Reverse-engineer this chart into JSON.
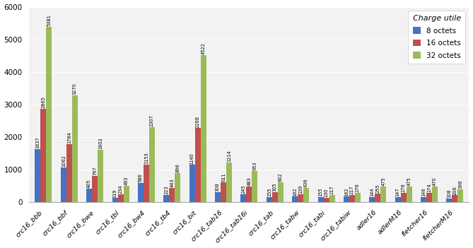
{
  "categories": [
    "crc16_bbb",
    "crc16_bbf",
    "crc16_bwe",
    "crc16_tbl",
    "crc16_bw4",
    "crc16_tb4",
    "crc16_bit",
    "crc16_tab16",
    "crc16_tab16i",
    "crc16_tab",
    "crc16_tabw",
    "crc16_tabi",
    "crc16_tabiw",
    "adler16",
    "adlerM16",
    "fletcher16",
    "fletcherM16"
  ],
  "series_8": [
    1637,
    1062,
    405,
    119,
    586,
    223,
    1140,
    308,
    245,
    155,
    162,
    155,
    162,
    144,
    147,
    146,
    108
  ],
  "series_16": [
    2865,
    1784,
    797,
    234,
    1153,
    443,
    2268,
    611,
    483,
    305,
    239,
    130,
    217,
    255,
    276,
    274,
    206
  ],
  "series_32": [
    5381,
    3270,
    1602,
    493,
    2307,
    896,
    4522,
    1214,
    953,
    602,
    436,
    217,
    276,
    475,
    475,
    470,
    396
  ],
  "color_8": "#4472C4",
  "color_16": "#C0504D",
  "color_32": "#9BBB59",
  "legend_title": "Charge utile",
  "legend_labels": [
    "8 octets",
    "16 octets",
    "32 octets"
  ],
  "ylim": [
    0,
    6000
  ],
  "yticks": [
    0,
    1000,
    2000,
    3000,
    4000,
    5000,
    6000
  ],
  "bar_label_fontsize": 4.8,
  "xlabel_fontsize": 6.8,
  "ylabel_fontsize": 8,
  "legend_title_fontsize": 8,
  "legend_fontsize": 7.5,
  "background_color": "#FFFFFF",
  "axes_background": "#F2F2F2",
  "grid_color": "#FFFFFF"
}
